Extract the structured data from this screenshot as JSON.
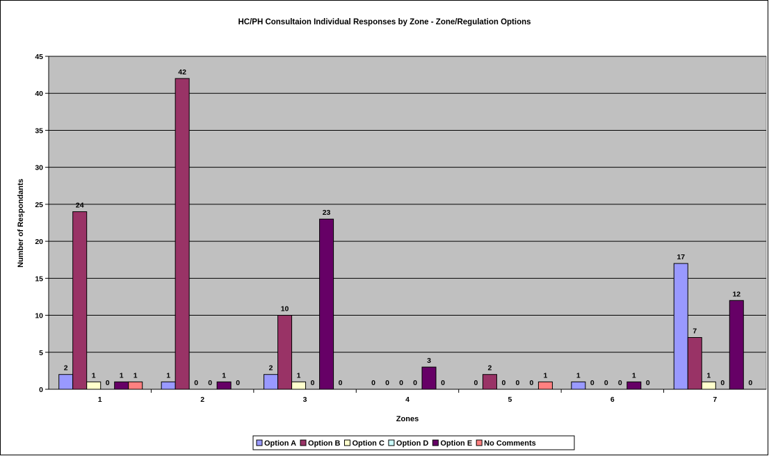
{
  "chart_data": {
    "type": "bar",
    "title": "HC/PH Consultaion Individual Responses by Zone - Zone/Regulation Options",
    "xlabel": "Zones",
    "ylabel": "Number of Respondants",
    "ylim": [
      0,
      45
    ],
    "ytick_step": 5,
    "categories": [
      "1",
      "2",
      "3",
      "4",
      "5",
      "6",
      "7"
    ],
    "series": [
      {
        "name": "Option A",
        "color": "#9999FF",
        "values": [
          2,
          1,
          2,
          0,
          0,
          1,
          17
        ]
      },
      {
        "name": "Option B",
        "color": "#993366",
        "values": [
          24,
          42,
          10,
          0,
          2,
          0,
          7
        ]
      },
      {
        "name": "Option C",
        "color": "#FFFFCC",
        "values": [
          1,
          0,
          1,
          0,
          0,
          0,
          1
        ]
      },
      {
        "name": "Option D",
        "color": "#CCFFFF",
        "values": [
          0,
          0,
          0,
          0,
          0,
          0,
          0
        ]
      },
      {
        "name": "Option E",
        "color": "#660066",
        "values": [
          1,
          1,
          23,
          3,
          0,
          1,
          12
        ]
      },
      {
        "name": "No Comments",
        "color": "#FF8080",
        "values": [
          1,
          0,
          0,
          0,
          1,
          0,
          0
        ]
      }
    ],
    "plot_background": "#C0C0C0",
    "grid": true,
    "legend_position": "bottom"
  }
}
